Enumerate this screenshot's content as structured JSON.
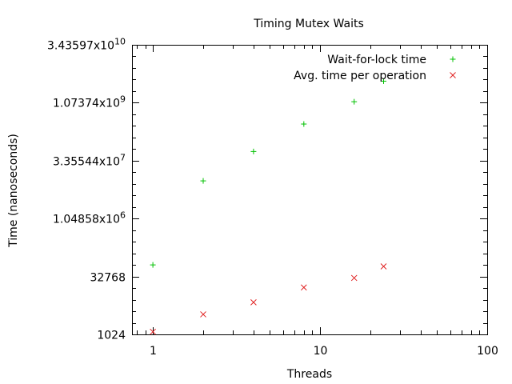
{
  "chart_data": {
    "type": "scatter",
    "title": "Timing Mutex Waits",
    "xlabel": "Threads",
    "ylabel": "Time (nanoseconds)",
    "x_scale": "log",
    "y_scale": "log2",
    "xlim": [
      0.75,
      100
    ],
    "ylim": [
      1024,
      34359738368
    ],
    "x_ticks": [
      {
        "value": 1,
        "label": "1"
      },
      {
        "value": 10,
        "label": "10"
      },
      {
        "value": 100,
        "label": "100"
      }
    ],
    "y_ticks": [
      {
        "value": 1024,
        "label": "1024"
      },
      {
        "value": 32768,
        "label": "32768"
      },
      {
        "value": 1048576,
        "label": "1.04858x10",
        "exp": "6"
      },
      {
        "value": 33554432,
        "label": "3.35544x10",
        "exp": "7"
      },
      {
        "value": 1073741824,
        "label": "1.07374x10",
        "exp": "9"
      },
      {
        "value": 34359738368,
        "label": "3.43597x10",
        "exp": "10"
      }
    ],
    "legend_position": "top-right",
    "series": [
      {
        "name": "Wait-for-lock time",
        "marker": "plus",
        "color": "#00c000",
        "x": [
          1,
          2,
          4,
          8,
          16,
          24
        ],
        "y": [
          65536,
          10000000,
          58000000,
          300000000,
          1140000000,
          3900000000
        ]
      },
      {
        "name": "Avg. time per operation",
        "marker": "cross",
        "color": "#e02020",
        "x": [
          1,
          2,
          4,
          8,
          16,
          24
        ],
        "y": [
          1200,
          3400,
          7000,
          17000,
          30000,
          60000
        ]
      }
    ]
  }
}
